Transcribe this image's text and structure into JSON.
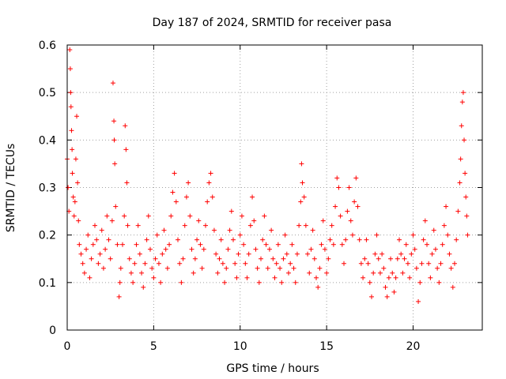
{
  "chart_data": {
    "type": "scatter",
    "title": "Day 187 of 2024, SRMTID for receiver pasa",
    "xlabel": "GPS time / hours",
    "ylabel": "SRMTID / TECUs",
    "xlim": [
      0,
      24
    ],
    "ylim": [
      0,
      0.6
    ],
    "xticks": [
      0,
      5,
      10,
      15,
      20
    ],
    "xtick_labels": [
      "0",
      "5",
      "10",
      "15",
      "20"
    ],
    "yticks": [
      0,
      0.1,
      0.2,
      0.3,
      0.4,
      0.5,
      0.6
    ],
    "ytick_labels": [
      "0",
      "0.1",
      "0.2",
      "0.3",
      "0.4",
      "0.5",
      "0.6"
    ],
    "grid": true,
    "marker": "+",
    "series_color": "#ff0000",
    "series": [
      {
        "name": "SRMTID",
        "points": [
          [
            0.0,
            0.36
          ],
          [
            0.05,
            0.3
          ],
          [
            0.1,
            0.25
          ],
          [
            0.15,
            0.59
          ],
          [
            0.18,
            0.55
          ],
          [
            0.2,
            0.5
          ],
          [
            0.22,
            0.47
          ],
          [
            0.25,
            0.42
          ],
          [
            0.28,
            0.38
          ],
          [
            0.3,
            0.33
          ],
          [
            0.35,
            0.28
          ],
          [
            0.4,
            0.24
          ],
          [
            0.45,
            0.27
          ],
          [
            0.5,
            0.36
          ],
          [
            0.55,
            0.45
          ],
          [
            0.6,
            0.31
          ],
          [
            0.65,
            0.23
          ],
          [
            0.7,
            0.18
          ],
          [
            0.8,
            0.16
          ],
          [
            0.9,
            0.14
          ],
          [
            1.0,
            0.12
          ],
          [
            1.1,
            0.17
          ],
          [
            1.2,
            0.2
          ],
          [
            1.3,
            0.11
          ],
          [
            1.4,
            0.15
          ],
          [
            1.5,
            0.18
          ],
          [
            1.6,
            0.22
          ],
          [
            1.7,
            0.19
          ],
          [
            1.8,
            0.14
          ],
          [
            1.9,
            0.16
          ],
          [
            2.0,
            0.21
          ],
          [
            2.1,
            0.13
          ],
          [
            2.2,
            0.17
          ],
          [
            2.3,
            0.24
          ],
          [
            2.4,
            0.19
          ],
          [
            2.5,
            0.15
          ],
          [
            2.6,
            0.23
          ],
          [
            2.65,
            0.52
          ],
          [
            2.7,
            0.44
          ],
          [
            2.72,
            0.4
          ],
          [
            2.75,
            0.35
          ],
          [
            2.8,
            0.26
          ],
          [
            2.9,
            0.18
          ],
          [
            3.0,
            0.07
          ],
          [
            3.05,
            0.1
          ],
          [
            3.1,
            0.13
          ],
          [
            3.2,
            0.18
          ],
          [
            3.3,
            0.24
          ],
          [
            3.35,
            0.43
          ],
          [
            3.4,
            0.38
          ],
          [
            3.45,
            0.31
          ],
          [
            3.5,
            0.22
          ],
          [
            3.6,
            0.15
          ],
          [
            3.7,
            0.12
          ],
          [
            3.8,
            0.1
          ],
          [
            3.9,
            0.14
          ],
          [
            4.0,
            0.18
          ],
          [
            4.1,
            0.22
          ],
          [
            4.2,
            0.16
          ],
          [
            4.3,
            0.12
          ],
          [
            4.4,
            0.09
          ],
          [
            4.5,
            0.14
          ],
          [
            4.6,
            0.19
          ],
          [
            4.7,
            0.24
          ],
          [
            4.8,
            0.17
          ],
          [
            4.9,
            0.13
          ],
          [
            5.0,
            0.11
          ],
          [
            5.1,
            0.15
          ],
          [
            5.2,
            0.2
          ],
          [
            5.3,
            0.14
          ],
          [
            5.4,
            0.1
          ],
          [
            5.5,
            0.16
          ],
          [
            5.6,
            0.21
          ],
          [
            5.7,
            0.17
          ],
          [
            5.8,
            0.13
          ],
          [
            5.9,
            0.18
          ],
          [
            6.0,
            0.24
          ],
          [
            6.1,
            0.29
          ],
          [
            6.2,
            0.33
          ],
          [
            6.3,
            0.27
          ],
          [
            6.4,
            0.19
          ],
          [
            6.5,
            0.14
          ],
          [
            6.6,
            0.1
          ],
          [
            6.7,
            0.15
          ],
          [
            6.8,
            0.22
          ],
          [
            6.9,
            0.28
          ],
          [
            7.0,
            0.31
          ],
          [
            7.1,
            0.24
          ],
          [
            7.2,
            0.17
          ],
          [
            7.3,
            0.12
          ],
          [
            7.4,
            0.15
          ],
          [
            7.5,
            0.19
          ],
          [
            7.6,
            0.23
          ],
          [
            7.7,
            0.18
          ],
          [
            7.8,
            0.13
          ],
          [
            7.9,
            0.17
          ],
          [
            8.0,
            0.22
          ],
          [
            8.1,
            0.27
          ],
          [
            8.2,
            0.31
          ],
          [
            8.3,
            0.33
          ],
          [
            8.4,
            0.28
          ],
          [
            8.5,
            0.21
          ],
          [
            8.6,
            0.16
          ],
          [
            8.7,
            0.12
          ],
          [
            8.8,
            0.15
          ],
          [
            8.9,
            0.19
          ],
          [
            9.0,
            0.14
          ],
          [
            9.1,
            0.1
          ],
          [
            9.2,
            0.13
          ],
          [
            9.3,
            0.17
          ],
          [
            9.4,
            0.21
          ],
          [
            9.5,
            0.25
          ],
          [
            9.6,
            0.19
          ],
          [
            9.7,
            0.14
          ],
          [
            9.8,
            0.11
          ],
          [
            9.9,
            0.16
          ],
          [
            10.0,
            0.2
          ],
          [
            10.1,
            0.24
          ],
          [
            10.2,
            0.18
          ],
          [
            10.3,
            0.14
          ],
          [
            10.4,
            0.11
          ],
          [
            10.5,
            0.16
          ],
          [
            10.6,
            0.22
          ],
          [
            10.7,
            0.28
          ],
          [
            10.8,
            0.23
          ],
          [
            10.9,
            0.17
          ],
          [
            11.0,
            0.13
          ],
          [
            11.1,
            0.1
          ],
          [
            11.2,
            0.15
          ],
          [
            11.3,
            0.19
          ],
          [
            11.4,
            0.24
          ],
          [
            11.5,
            0.18
          ],
          [
            11.6,
            0.13
          ],
          [
            11.7,
            0.17
          ],
          [
            11.8,
            0.21
          ],
          [
            11.9,
            0.15
          ],
          [
            12.0,
            0.11
          ],
          [
            12.1,
            0.14
          ],
          [
            12.2,
            0.18
          ],
          [
            12.3,
            0.13
          ],
          [
            12.4,
            0.1
          ],
          [
            12.5,
            0.15
          ],
          [
            12.6,
            0.2
          ],
          [
            12.7,
            0.16
          ],
          [
            12.8,
            0.12
          ],
          [
            12.9,
            0.14
          ],
          [
            13.0,
            0.18
          ],
          [
            13.1,
            0.13
          ],
          [
            13.2,
            0.1
          ],
          [
            13.3,
            0.16
          ],
          [
            13.4,
            0.22
          ],
          [
            13.5,
            0.27
          ],
          [
            13.55,
            0.35
          ],
          [
            13.6,
            0.31
          ],
          [
            13.7,
            0.28
          ],
          [
            13.8,
            0.22
          ],
          [
            13.9,
            0.16
          ],
          [
            14.0,
            0.12
          ],
          [
            14.1,
            0.17
          ],
          [
            14.2,
            0.21
          ],
          [
            14.3,
            0.15
          ],
          [
            14.4,
            0.11
          ],
          [
            14.5,
            0.09
          ],
          [
            14.6,
            0.13
          ],
          [
            14.7,
            0.18
          ],
          [
            14.8,
            0.23
          ],
          [
            14.9,
            0.17
          ],
          [
            15.0,
            0.12
          ],
          [
            15.1,
            0.15
          ],
          [
            15.2,
            0.19
          ],
          [
            15.3,
            0.22
          ],
          [
            15.4,
            0.18
          ],
          [
            15.5,
            0.26
          ],
          [
            15.6,
            0.32
          ],
          [
            15.7,
            0.3
          ],
          [
            15.8,
            0.24
          ],
          [
            15.9,
            0.18
          ],
          [
            16.0,
            0.14
          ],
          [
            16.1,
            0.19
          ],
          [
            16.2,
            0.25
          ],
          [
            16.3,
            0.3
          ],
          [
            16.4,
            0.23
          ],
          [
            16.5,
            0.2
          ],
          [
            16.6,
            0.27
          ],
          [
            16.7,
            0.32
          ],
          [
            16.8,
            0.26
          ],
          [
            16.9,
            0.19
          ],
          [
            17.0,
            0.14
          ],
          [
            17.1,
            0.11
          ],
          [
            17.2,
            0.15
          ],
          [
            17.3,
            0.19
          ],
          [
            17.4,
            0.14
          ],
          [
            17.5,
            0.1
          ],
          [
            17.6,
            0.07
          ],
          [
            17.7,
            0.12
          ],
          [
            17.8,
            0.16
          ],
          [
            17.9,
            0.2
          ],
          [
            18.0,
            0.15
          ],
          [
            18.1,
            0.12
          ],
          [
            18.2,
            0.16
          ],
          [
            18.3,
            0.13
          ],
          [
            18.4,
            0.09
          ],
          [
            18.5,
            0.07
          ],
          [
            18.6,
            0.11
          ],
          [
            18.7,
            0.15
          ],
          [
            18.8,
            0.12
          ],
          [
            18.9,
            0.08
          ],
          [
            19.0,
            0.11
          ],
          [
            19.1,
            0.15
          ],
          [
            19.2,
            0.19
          ],
          [
            19.3,
            0.16
          ],
          [
            19.4,
            0.12
          ],
          [
            19.5,
            0.15
          ],
          [
            19.6,
            0.18
          ],
          [
            19.7,
            0.14
          ],
          [
            19.8,
            0.11
          ],
          [
            19.9,
            0.16
          ],
          [
            20.0,
            0.2
          ],
          [
            20.1,
            0.17
          ],
          [
            20.2,
            0.13
          ],
          [
            20.3,
            0.06
          ],
          [
            20.4,
            0.1
          ],
          [
            20.5,
            0.14
          ],
          [
            20.6,
            0.19
          ],
          [
            20.7,
            0.23
          ],
          [
            20.8,
            0.18
          ],
          [
            20.9,
            0.14
          ],
          [
            21.0,
            0.11
          ],
          [
            21.1,
            0.16
          ],
          [
            21.2,
            0.21
          ],
          [
            21.3,
            0.17
          ],
          [
            21.4,
            0.13
          ],
          [
            21.5,
            0.1
          ],
          [
            21.6,
            0.14
          ],
          [
            21.7,
            0.18
          ],
          [
            21.8,
            0.22
          ],
          [
            21.9,
            0.26
          ],
          [
            22.0,
            0.2
          ],
          [
            22.1,
            0.16
          ],
          [
            22.2,
            0.13
          ],
          [
            22.3,
            0.09
          ],
          [
            22.4,
            0.14
          ],
          [
            22.5,
            0.19
          ],
          [
            22.6,
            0.25
          ],
          [
            22.7,
            0.31
          ],
          [
            22.75,
            0.36
          ],
          [
            22.8,
            0.43
          ],
          [
            22.85,
            0.48
          ],
          [
            22.9,
            0.5
          ],
          [
            22.95,
            0.4
          ],
          [
            23.0,
            0.33
          ],
          [
            23.05,
            0.28
          ],
          [
            23.1,
            0.24
          ],
          [
            23.15,
            0.2
          ]
        ]
      }
    ]
  }
}
